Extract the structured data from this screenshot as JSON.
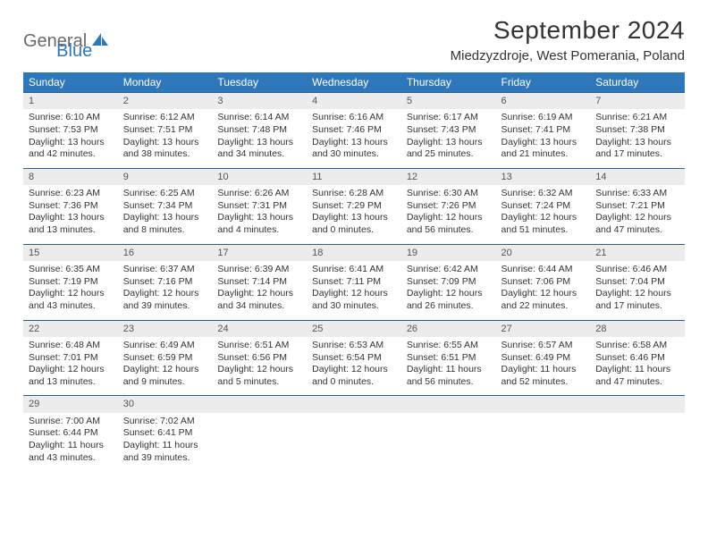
{
  "logo": {
    "general": "General",
    "blue": "Blue"
  },
  "title": "September 2024",
  "location": "Miedzyzdroje, West Pomerania, Poland",
  "colors": {
    "header_bg": "#2f77bb",
    "header_text": "#ffffff",
    "daynum_bg": "#ececec",
    "border": "#2f5e8a",
    "logo_gray": "#6b6b6b",
    "logo_blue": "#2f77bb",
    "text": "#333333",
    "background": "#ffffff"
  },
  "typography": {
    "title_fontsize": 28,
    "location_fontsize": 15,
    "dow_fontsize": 12,
    "cell_fontsize": 10.5
  },
  "dow": [
    "Sunday",
    "Monday",
    "Tuesday",
    "Wednesday",
    "Thursday",
    "Friday",
    "Saturday"
  ],
  "weeks": [
    [
      {
        "n": "1",
        "sr": "Sunrise: 6:10 AM",
        "ss": "Sunset: 7:53 PM",
        "d1": "Daylight: 13 hours",
        "d2": "and 42 minutes."
      },
      {
        "n": "2",
        "sr": "Sunrise: 6:12 AM",
        "ss": "Sunset: 7:51 PM",
        "d1": "Daylight: 13 hours",
        "d2": "and 38 minutes."
      },
      {
        "n": "3",
        "sr": "Sunrise: 6:14 AM",
        "ss": "Sunset: 7:48 PM",
        "d1": "Daylight: 13 hours",
        "d2": "and 34 minutes."
      },
      {
        "n": "4",
        "sr": "Sunrise: 6:16 AM",
        "ss": "Sunset: 7:46 PM",
        "d1": "Daylight: 13 hours",
        "d2": "and 30 minutes."
      },
      {
        "n": "5",
        "sr": "Sunrise: 6:17 AM",
        "ss": "Sunset: 7:43 PM",
        "d1": "Daylight: 13 hours",
        "d2": "and 25 minutes."
      },
      {
        "n": "6",
        "sr": "Sunrise: 6:19 AM",
        "ss": "Sunset: 7:41 PM",
        "d1": "Daylight: 13 hours",
        "d2": "and 21 minutes."
      },
      {
        "n": "7",
        "sr": "Sunrise: 6:21 AM",
        "ss": "Sunset: 7:38 PM",
        "d1": "Daylight: 13 hours",
        "d2": "and 17 minutes."
      }
    ],
    [
      {
        "n": "8",
        "sr": "Sunrise: 6:23 AM",
        "ss": "Sunset: 7:36 PM",
        "d1": "Daylight: 13 hours",
        "d2": "and 13 minutes."
      },
      {
        "n": "9",
        "sr": "Sunrise: 6:25 AM",
        "ss": "Sunset: 7:34 PM",
        "d1": "Daylight: 13 hours",
        "d2": "and 8 minutes."
      },
      {
        "n": "10",
        "sr": "Sunrise: 6:26 AM",
        "ss": "Sunset: 7:31 PM",
        "d1": "Daylight: 13 hours",
        "d2": "and 4 minutes."
      },
      {
        "n": "11",
        "sr": "Sunrise: 6:28 AM",
        "ss": "Sunset: 7:29 PM",
        "d1": "Daylight: 13 hours",
        "d2": "and 0 minutes."
      },
      {
        "n": "12",
        "sr": "Sunrise: 6:30 AM",
        "ss": "Sunset: 7:26 PM",
        "d1": "Daylight: 12 hours",
        "d2": "and 56 minutes."
      },
      {
        "n": "13",
        "sr": "Sunrise: 6:32 AM",
        "ss": "Sunset: 7:24 PM",
        "d1": "Daylight: 12 hours",
        "d2": "and 51 minutes."
      },
      {
        "n": "14",
        "sr": "Sunrise: 6:33 AM",
        "ss": "Sunset: 7:21 PM",
        "d1": "Daylight: 12 hours",
        "d2": "and 47 minutes."
      }
    ],
    [
      {
        "n": "15",
        "sr": "Sunrise: 6:35 AM",
        "ss": "Sunset: 7:19 PM",
        "d1": "Daylight: 12 hours",
        "d2": "and 43 minutes."
      },
      {
        "n": "16",
        "sr": "Sunrise: 6:37 AM",
        "ss": "Sunset: 7:16 PM",
        "d1": "Daylight: 12 hours",
        "d2": "and 39 minutes."
      },
      {
        "n": "17",
        "sr": "Sunrise: 6:39 AM",
        "ss": "Sunset: 7:14 PM",
        "d1": "Daylight: 12 hours",
        "d2": "and 34 minutes."
      },
      {
        "n": "18",
        "sr": "Sunrise: 6:41 AM",
        "ss": "Sunset: 7:11 PM",
        "d1": "Daylight: 12 hours",
        "d2": "and 30 minutes."
      },
      {
        "n": "19",
        "sr": "Sunrise: 6:42 AM",
        "ss": "Sunset: 7:09 PM",
        "d1": "Daylight: 12 hours",
        "d2": "and 26 minutes."
      },
      {
        "n": "20",
        "sr": "Sunrise: 6:44 AM",
        "ss": "Sunset: 7:06 PM",
        "d1": "Daylight: 12 hours",
        "d2": "and 22 minutes."
      },
      {
        "n": "21",
        "sr": "Sunrise: 6:46 AM",
        "ss": "Sunset: 7:04 PM",
        "d1": "Daylight: 12 hours",
        "d2": "and 17 minutes."
      }
    ],
    [
      {
        "n": "22",
        "sr": "Sunrise: 6:48 AM",
        "ss": "Sunset: 7:01 PM",
        "d1": "Daylight: 12 hours",
        "d2": "and 13 minutes."
      },
      {
        "n": "23",
        "sr": "Sunrise: 6:49 AM",
        "ss": "Sunset: 6:59 PM",
        "d1": "Daylight: 12 hours",
        "d2": "and 9 minutes."
      },
      {
        "n": "24",
        "sr": "Sunrise: 6:51 AM",
        "ss": "Sunset: 6:56 PM",
        "d1": "Daylight: 12 hours",
        "d2": "and 5 minutes."
      },
      {
        "n": "25",
        "sr": "Sunrise: 6:53 AM",
        "ss": "Sunset: 6:54 PM",
        "d1": "Daylight: 12 hours",
        "d2": "and 0 minutes."
      },
      {
        "n": "26",
        "sr": "Sunrise: 6:55 AM",
        "ss": "Sunset: 6:51 PM",
        "d1": "Daylight: 11 hours",
        "d2": "and 56 minutes."
      },
      {
        "n": "27",
        "sr": "Sunrise: 6:57 AM",
        "ss": "Sunset: 6:49 PM",
        "d1": "Daylight: 11 hours",
        "d2": "and 52 minutes."
      },
      {
        "n": "28",
        "sr": "Sunrise: 6:58 AM",
        "ss": "Sunset: 6:46 PM",
        "d1": "Daylight: 11 hours",
        "d2": "and 47 minutes."
      }
    ],
    [
      {
        "n": "29",
        "sr": "Sunrise: 7:00 AM",
        "ss": "Sunset: 6:44 PM",
        "d1": "Daylight: 11 hours",
        "d2": "and 43 minutes."
      },
      {
        "n": "30",
        "sr": "Sunrise: 7:02 AM",
        "ss": "Sunset: 6:41 PM",
        "d1": "Daylight: 11 hours",
        "d2": "and 39 minutes."
      },
      null,
      null,
      null,
      null,
      null
    ]
  ]
}
